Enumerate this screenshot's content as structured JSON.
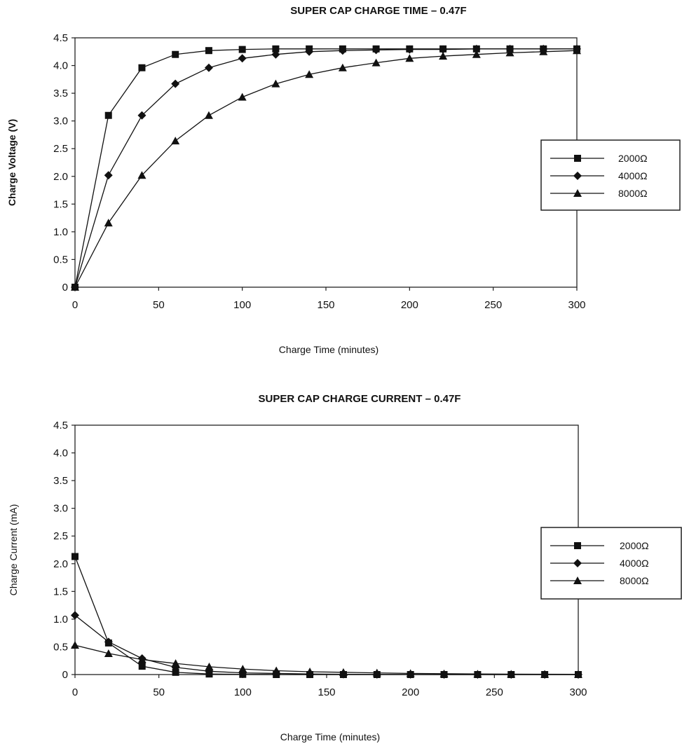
{
  "chart_data": [
    {
      "type": "line",
      "title": "SUPER CAP CHARGE TIME – 0.47F",
      "xlabel": "Charge Time (minutes)",
      "ylabel": "Charge Voltage (V)",
      "xlim": [
        0,
        300
      ],
      "ylim": [
        0,
        4.5
      ],
      "x_ticks": [
        "0",
        "50",
        "100",
        "150",
        "200",
        "250",
        "300"
      ],
      "y_ticks": [
        "0",
        "0.5",
        "1.0",
        "1.5",
        "2.0",
        "2.5",
        "3.0",
        "3.5",
        "4.0",
        "4.5"
      ],
      "grid": false,
      "legend_position": "right",
      "series": [
        {
          "name": "2000Ω",
          "marker": "square",
          "x": [
            0,
            20,
            40,
            60,
            80,
            100,
            120,
            140,
            160,
            180,
            200,
            220,
            240,
            260,
            280,
            300
          ],
          "values": [
            0,
            3.1,
            3.96,
            4.2,
            4.27,
            4.29,
            4.3,
            4.3,
            4.3,
            4.3,
            4.3,
            4.3,
            4.3,
            4.3,
            4.3,
            4.3
          ]
        },
        {
          "name": "4000Ω",
          "marker": "diamond",
          "x": [
            0,
            20,
            40,
            60,
            80,
            100,
            120,
            140,
            160,
            180,
            200,
            220,
            240,
            260,
            280,
            300
          ],
          "values": [
            0,
            2.02,
            3.1,
            3.67,
            3.96,
            4.13,
            4.2,
            4.25,
            4.27,
            4.28,
            4.29,
            4.29,
            4.3,
            4.3,
            4.3,
            4.3
          ]
        },
        {
          "name": "8000Ω",
          "marker": "triangle",
          "x": [
            0,
            20,
            40,
            60,
            80,
            100,
            120,
            140,
            160,
            180,
            200,
            220,
            240,
            260,
            280,
            300
          ],
          "values": [
            0,
            1.16,
            2.02,
            2.64,
            3.1,
            3.43,
            3.67,
            3.84,
            3.96,
            4.05,
            4.13,
            4.17,
            4.2,
            4.23,
            4.25,
            4.27
          ]
        }
      ]
    },
    {
      "type": "line",
      "title": "SUPER CAP CHARGE CURRENT – 0.47F",
      "xlabel": "Charge Time (minutes)",
      "ylabel": "Charge Current (mA)",
      "xlim": [
        0,
        300
      ],
      "ylim": [
        0,
        4.5
      ],
      "x_ticks": [
        "0",
        "50",
        "100",
        "150",
        "200",
        "250",
        "300"
      ],
      "y_ticks": [
        "0",
        "0.5",
        "1.0",
        "1.5",
        "2.0",
        "2.5",
        "3.0",
        "3.5",
        "4.0",
        "4.5"
      ],
      "grid": false,
      "legend_position": "right",
      "series": [
        {
          "name": "2000Ω",
          "marker": "square",
          "x": [
            0,
            20,
            40,
            60,
            80,
            100,
            120,
            140,
            160,
            180,
            200,
            220,
            240,
            260,
            280,
            300
          ],
          "values": [
            2.13,
            0.57,
            0.15,
            0.04,
            0.01,
            0.003,
            0,
            0,
            0,
            0,
            0,
            0,
            0,
            0,
            0,
            0
          ]
        },
        {
          "name": "4000Ω",
          "marker": "diamond",
          "x": [
            0,
            20,
            40,
            60,
            80,
            100,
            120,
            140,
            160,
            180,
            200,
            220,
            240,
            260,
            280,
            300
          ],
          "values": [
            1.07,
            0.59,
            0.29,
            0.13,
            0.06,
            0.03,
            0.02,
            0.01,
            0.005,
            0.002,
            0.001,
            0,
            0,
            0,
            0,
            0
          ]
        },
        {
          "name": "8000Ω",
          "marker": "triangle",
          "x": [
            0,
            20,
            40,
            60,
            80,
            100,
            120,
            140,
            160,
            180,
            200,
            220,
            240,
            260,
            280,
            300
          ],
          "values": [
            0.53,
            0.38,
            0.27,
            0.2,
            0.14,
            0.1,
            0.07,
            0.05,
            0.04,
            0.03,
            0.02,
            0.015,
            0.01,
            0.008,
            0.006,
            0.005
          ]
        }
      ]
    }
  ]
}
